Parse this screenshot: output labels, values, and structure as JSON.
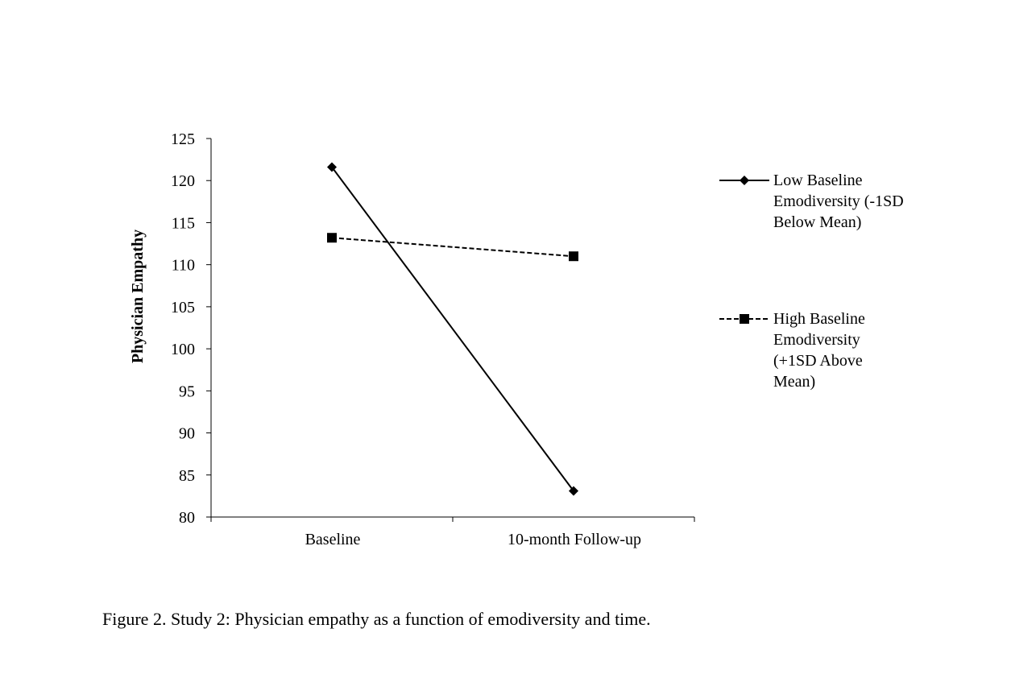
{
  "chart_data": {
    "type": "line",
    "categories": [
      "Baseline",
      "10-month Follow-up"
    ],
    "series": [
      {
        "name": "Low Baseline Emodiversity (-1SD Below Mean)",
        "marker": "diamond",
        "line": "solid",
        "values": [
          121.6,
          83.1
        ]
      },
      {
        "name": "High Baseline Emodiversity (+1SD Above Mean)",
        "marker": "square",
        "line": "dashed",
        "values": [
          113.2,
          111.0
        ]
      }
    ],
    "ylabel": "Physician Empathy",
    "xlabel": "",
    "ylim": [
      80,
      125
    ],
    "yticks": [
      80,
      85,
      90,
      95,
      100,
      105,
      110,
      115,
      120,
      125
    ],
    "grid": false,
    "legend": "right",
    "color": "#000000"
  },
  "caption": "Figure 2. Study 2: Physician empathy as a function of emodiversity and time.",
  "legend_lines": [
    [
      "Low Baseline",
      "Emodiversity (-1SD",
      "Below Mean)"
    ],
    [
      "High Baseline",
      "Emodiversity",
      "(+1SD Above",
      "Mean)"
    ]
  ]
}
